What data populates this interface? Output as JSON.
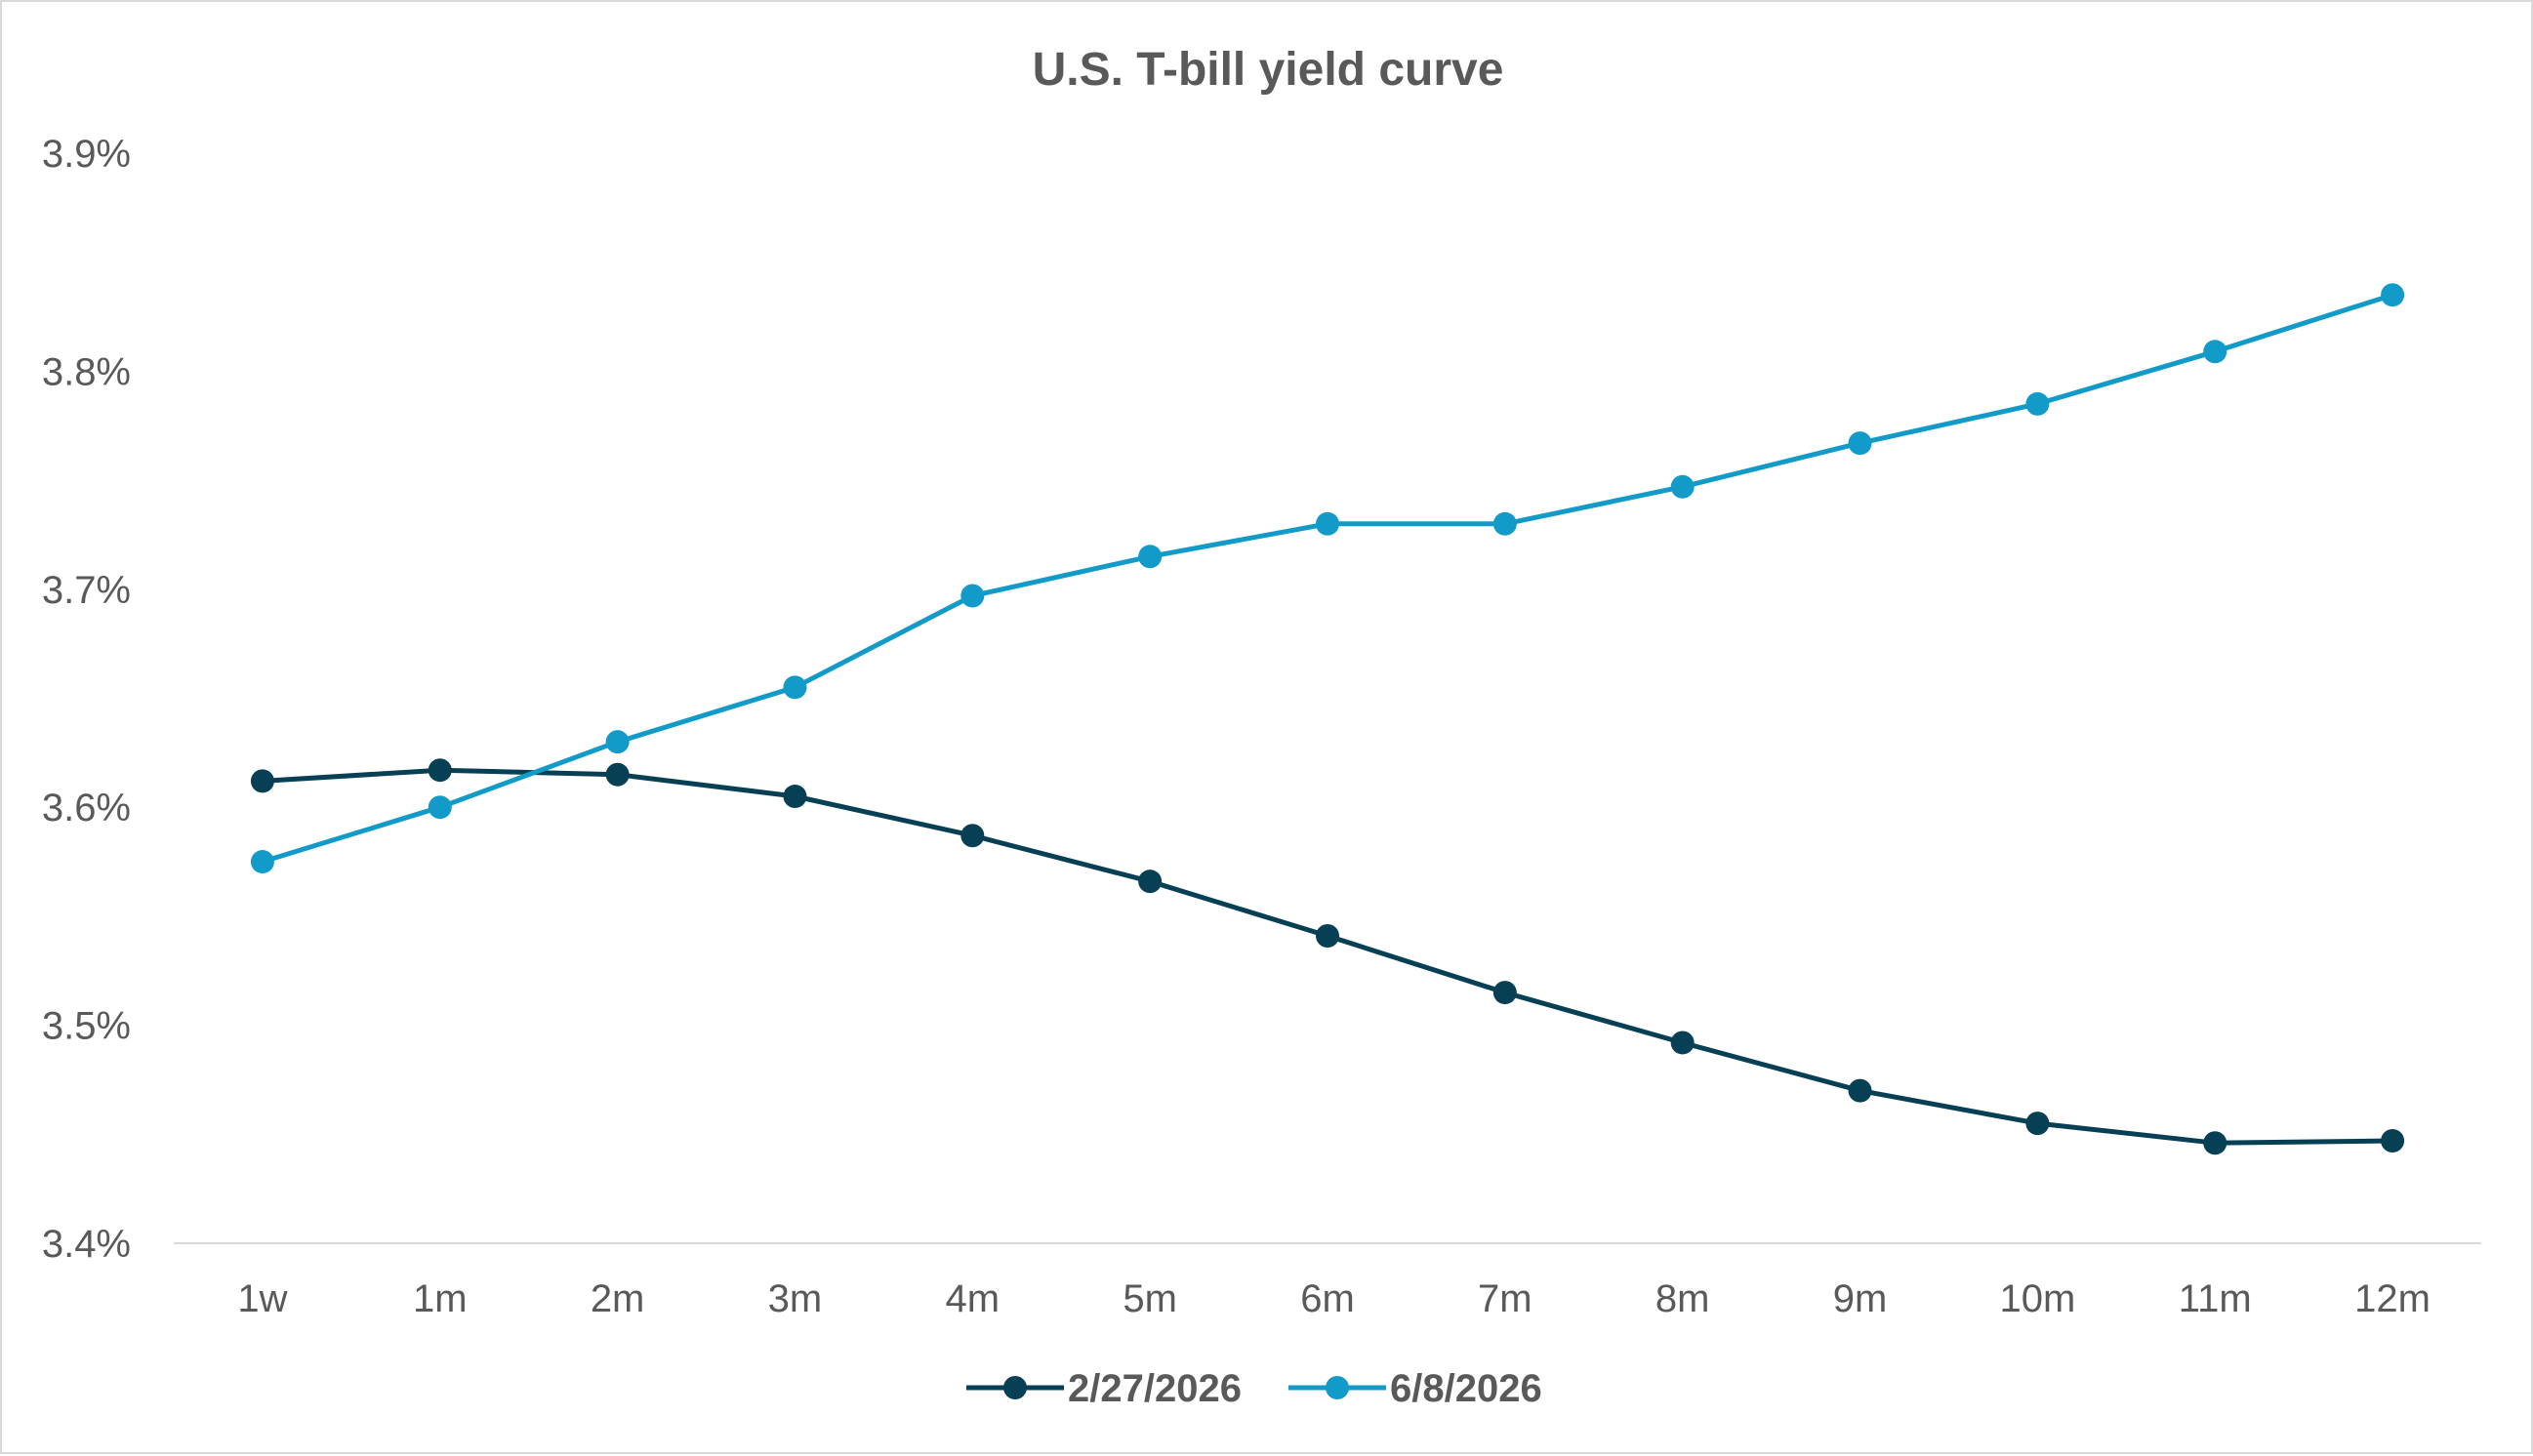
{
  "chart_data": {
    "type": "line",
    "title": "U.S. T-bill yield curve",
    "xlabel": "",
    "ylabel": "",
    "categories": [
      "1w",
      "1m",
      "2m",
      "3m",
      "4m",
      "5m",
      "6m",
      "7m",
      "8m",
      "9m",
      "10m",
      "11m",
      "12m"
    ],
    "y_ticks": [
      "3.4%",
      "3.5%",
      "3.6%",
      "3.7%",
      "3.8%",
      "3.9%"
    ],
    "ylim": [
      3.4,
      3.9
    ],
    "grid": false,
    "legend_position": "bottom",
    "series": [
      {
        "name": "2/27/2026",
        "color": "#073f55",
        "values": [
          3.612,
          3.617,
          3.615,
          3.605,
          3.587,
          3.566,
          3.541,
          3.515,
          3.492,
          3.47,
          3.455,
          3.446,
          3.447
        ]
      },
      {
        "name": "6/8/2026",
        "color": "#129bc8",
        "values": [
          3.575,
          3.6,
          3.63,
          3.655,
          3.697,
          3.715,
          3.73,
          3.73,
          3.747,
          3.767,
          3.785,
          3.809,
          3.835
        ]
      }
    ]
  }
}
